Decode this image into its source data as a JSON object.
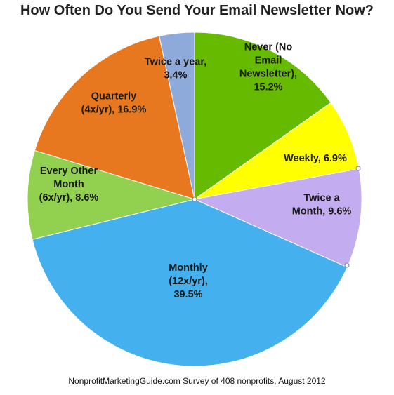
{
  "chart_data": {
    "type": "pie",
    "title": "How Often Do You Send Your Email Newsletter Now?",
    "footer": "NonprofitMarketingGuide.com Survey of 408 nonprofits, August 2012",
    "start_angle_deg": 0,
    "direction": "clockwise",
    "slices": [
      {
        "label": [
          "Never (No",
          "Email",
          "Newsletter),",
          "15.2%"
        ],
        "value": 15.2,
        "color": "#66bb00"
      },
      {
        "label": [
          "Weekly, 6.9%"
        ],
        "value": 6.9,
        "color": "#ffff00"
      },
      {
        "label": [
          "Twice a",
          "Month, 9.6%"
        ],
        "value": 9.6,
        "color": "#c3acf0"
      },
      {
        "label": [
          "Monthly",
          "(12x/yr),",
          "39.5%"
        ],
        "value": 39.5,
        "color": "#45b0ee"
      },
      {
        "label": [
          "Every Other",
          "Month",
          "(6x/yr), 8.6%"
        ],
        "value": 8.6,
        "color": "#92d050"
      },
      {
        "label": [
          "Quarterly",
          "(4x/yr), 16.9%"
        ],
        "value": 16.9,
        "color": "#e8781f"
      },
      {
        "label": [
          "Twice a year,",
          "3.4%"
        ],
        "value": 3.4,
        "color": "#8eaadb"
      }
    ]
  }
}
